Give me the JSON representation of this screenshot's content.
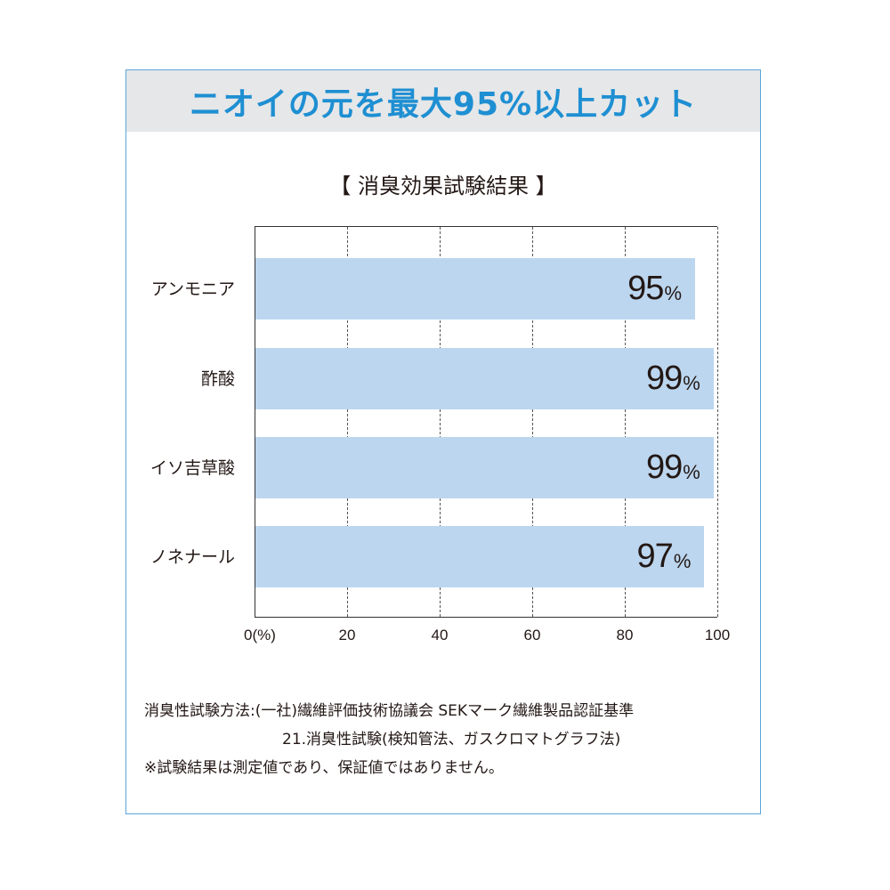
{
  "header": {
    "title": "ニオイの元を最大95%以上カット"
  },
  "chart_title": "【 消臭効果試験結果 】",
  "colors": {
    "accent": "#1e8fd2",
    "bar": "#bcd6ef",
    "border": "#5aa6dc",
    "header_bg": "#e6e7e9"
  },
  "chart_data": {
    "type": "bar",
    "orientation": "horizontal",
    "title": "【 消臭効果試験結果 】",
    "categories": [
      "アンモニア",
      "酢酸",
      "イソ吉草酸",
      "ノネナール"
    ],
    "values": [
      95,
      99,
      99,
      97
    ],
    "value_labels": [
      "95",
      "99",
      "99",
      "97"
    ],
    "unit": "%",
    "xlabel": "(%)",
    "ylabel": "",
    "xlim": [
      0,
      100
    ],
    "xticks": [
      "0(%)",
      "20",
      "40",
      "60",
      "80",
      "100"
    ],
    "grid": "vertical dashed",
    "legend": "none"
  },
  "notes": [
    "消臭性試験方法:(一社)繊維評価技術協議会 SEKマーク繊維製品認証基準",
    "21.消臭性試験(検知管法、ガスクロマトグラフ法)",
    "※試験結果は測定値であり、保証値ではありません。"
  ]
}
